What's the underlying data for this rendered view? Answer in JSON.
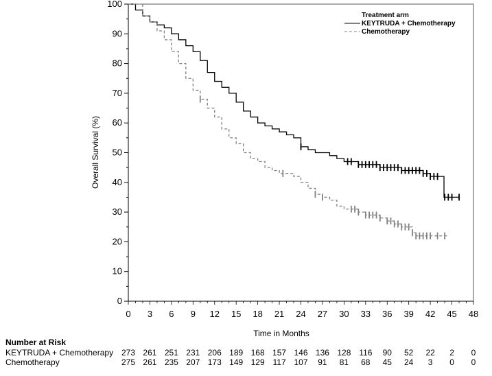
{
  "chart_data": {
    "type": "line",
    "title": "",
    "xlabel": "Time in Months",
    "ylabel": "Overall Survival (%)",
    "xlim": [
      0,
      48
    ],
    "ylim": [
      0,
      100
    ],
    "xticks": [
      "0",
      "3",
      "6",
      "9",
      "12",
      "15",
      "18",
      "21",
      "24",
      "27",
      "30",
      "33",
      "36",
      "39",
      "42",
      "45",
      "48"
    ],
    "yticks": [
      "0",
      "10",
      "20",
      "30",
      "40",
      "50",
      "60",
      "70",
      "80",
      "90",
      "100"
    ],
    "grid": false,
    "legend": {
      "title": "Treatment arm",
      "placement": "top-right",
      "entries": [
        "KEYTRUDA + Chemotherapy",
        "Chemotherapy"
      ]
    },
    "series": [
      {
        "name": "KEYTRUDA + Chemotherapy",
        "color": "#000000",
        "style": "solid",
        "x": [
          0,
          1,
          2,
          3,
          4,
          5,
          6,
          7,
          8,
          9,
          10,
          11,
          12,
          13,
          14,
          15,
          16,
          17,
          18,
          19,
          20,
          21,
          22,
          23,
          24,
          25,
          26,
          27,
          28,
          29,
          30,
          31,
          32,
          33,
          34,
          35,
          36,
          37,
          38,
          39,
          40,
          41,
          42,
          43,
          43.9,
          43.9,
          46
        ],
        "y": [
          100,
          98,
          96,
          94,
          93,
          92,
          90,
          88,
          86,
          84,
          81,
          77,
          74,
          72,
          70,
          67,
          64,
          62,
          60,
          59,
          58,
          57,
          56,
          55,
          52,
          51,
          50,
          50,
          49,
          48,
          47,
          47,
          46,
          46,
          46,
          45,
          45,
          45,
          44,
          44,
          44,
          43,
          42,
          42,
          42,
          35,
          35
        ],
        "censor_x": [
          24,
          30.5,
          31,
          32,
          32.5,
          33,
          33.5,
          34,
          34.5,
          35,
          35.5,
          36,
          36.5,
          37,
          37.5,
          38,
          38.5,
          39,
          39.5,
          40,
          40.5,
          41,
          41.5,
          42,
          42.5,
          43,
          44,
          44.5,
          45,
          46
        ]
      },
      {
        "name": "Chemotherapy",
        "color": "#808080",
        "style": "dashed",
        "x": [
          0,
          2,
          3,
          4,
          5,
          6,
          7,
          8,
          9,
          10,
          11,
          12,
          13,
          14,
          15,
          16,
          17,
          18,
          19,
          20,
          21,
          22,
          23,
          24,
          25,
          26,
          27,
          28,
          29,
          30,
          31,
          32,
          33,
          34,
          35,
          36,
          37,
          38,
          39,
          39.5,
          40,
          42,
          44.5
        ],
        "y": [
          100,
          96,
          94,
          91,
          88,
          84,
          80,
          75,
          71,
          68,
          65,
          62,
          58,
          55,
          53,
          50,
          48,
          47,
          45,
          44,
          43,
          43,
          42,
          40,
          38,
          36,
          35,
          34,
          32,
          31,
          31,
          30,
          29,
          29,
          28,
          27,
          26,
          25,
          25,
          23,
          22,
          22,
          22
        ],
        "censor_x": [
          10,
          21.5,
          26,
          27,
          31,
          31.5,
          32,
          33,
          33.5,
          34,
          34.5,
          35,
          36,
          36.5,
          37,
          37.5,
          38,
          38.5,
          39,
          39.5,
          40,
          40.5,
          41,
          41.5,
          42,
          43,
          44
        ]
      }
    ]
  },
  "risk_table": {
    "title": "Number at Risk",
    "rows": [
      {
        "label": "KEYTRUDA + Chemotherapy",
        "values": [
          "273",
          "261",
          "251",
          "231",
          "206",
          "189",
          "168",
          "157",
          "146",
          "136",
          "128",
          "116",
          "90",
          "52",
          "22",
          "2",
          "0"
        ]
      },
      {
        "label": "Chemotherapy",
        "values": [
          "275",
          "261",
          "235",
          "207",
          "173",
          "149",
          "129",
          "117",
          "107",
          "91",
          "81",
          "68",
          "45",
          "24",
          "3",
          "0",
          "0"
        ]
      }
    ]
  }
}
